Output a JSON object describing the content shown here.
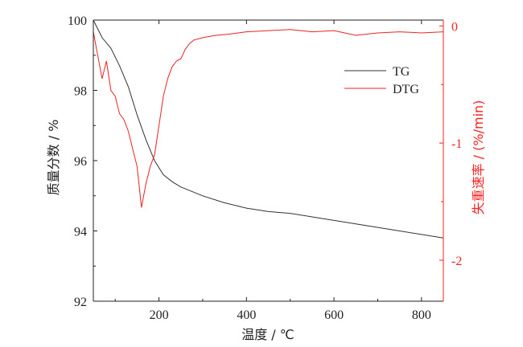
{
  "chart_data": {
    "type": "line",
    "xlabel": "温度 / ℃",
    "ylabel": "质量分数 / %",
    "y2label": "失重速率 / (%/min)",
    "xlim": [
      50,
      850
    ],
    "ylim": [
      92,
      100
    ],
    "y2lim": [
      -2.35,
      0.05
    ],
    "x_ticks": [
      200,
      400,
      600,
      800
    ],
    "y_ticks": [
      92,
      94,
      96,
      98,
      100
    ],
    "y2_ticks": [
      -2,
      -1,
      0
    ],
    "x_tick_labels": [
      "200",
      "400",
      "600",
      "800"
    ],
    "y_tick_labels": [
      "92",
      "94",
      "96",
      "98",
      "100"
    ],
    "y2_tick_labels": [
      "-2",
      "-1",
      "0"
    ],
    "legend_position": "top-right",
    "colors": {
      "axis_left": "#222222",
      "axis_right": "#ff2020",
      "tg": "#333333",
      "dtg": "#ee2222"
    },
    "series": [
      {
        "name": "TG",
        "axis": "left",
        "x": [
          50,
          70,
          90,
          110,
          130,
          150,
          170,
          190,
          210,
          230,
          250,
          270,
          300,
          350,
          400,
          450,
          500,
          550,
          600,
          650,
          700,
          750,
          800,
          850
        ],
        "values": [
          100.0,
          99.5,
          99.2,
          98.7,
          98.1,
          97.3,
          96.6,
          96.0,
          95.6,
          95.4,
          95.25,
          95.15,
          95.0,
          94.8,
          94.65,
          94.55,
          94.5,
          94.4,
          94.3,
          94.2,
          94.1,
          94.0,
          93.9,
          93.8
        ]
      },
      {
        "name": "DTG",
        "axis": "right",
        "x": [
          50,
          60,
          70,
          80,
          90,
          100,
          110,
          120,
          130,
          140,
          150,
          160,
          170,
          180,
          190,
          200,
          210,
          220,
          230,
          240,
          250,
          260,
          270,
          280,
          300,
          330,
          360,
          400,
          450,
          500,
          550,
          600,
          650,
          700,
          750,
          800,
          850
        ],
        "values": [
          -0.05,
          -0.25,
          -0.45,
          -0.3,
          -0.55,
          -0.6,
          -0.75,
          -0.8,
          -0.9,
          -1.05,
          -1.2,
          -1.55,
          -1.35,
          -1.2,
          -1.1,
          -0.85,
          -0.6,
          -0.45,
          -0.35,
          -0.3,
          -0.28,
          -0.2,
          -0.15,
          -0.12,
          -0.1,
          -0.08,
          -0.07,
          -0.05,
          -0.04,
          -0.03,
          -0.05,
          -0.04,
          -0.08,
          -0.06,
          -0.05,
          -0.06,
          -0.05
        ]
      }
    ]
  }
}
